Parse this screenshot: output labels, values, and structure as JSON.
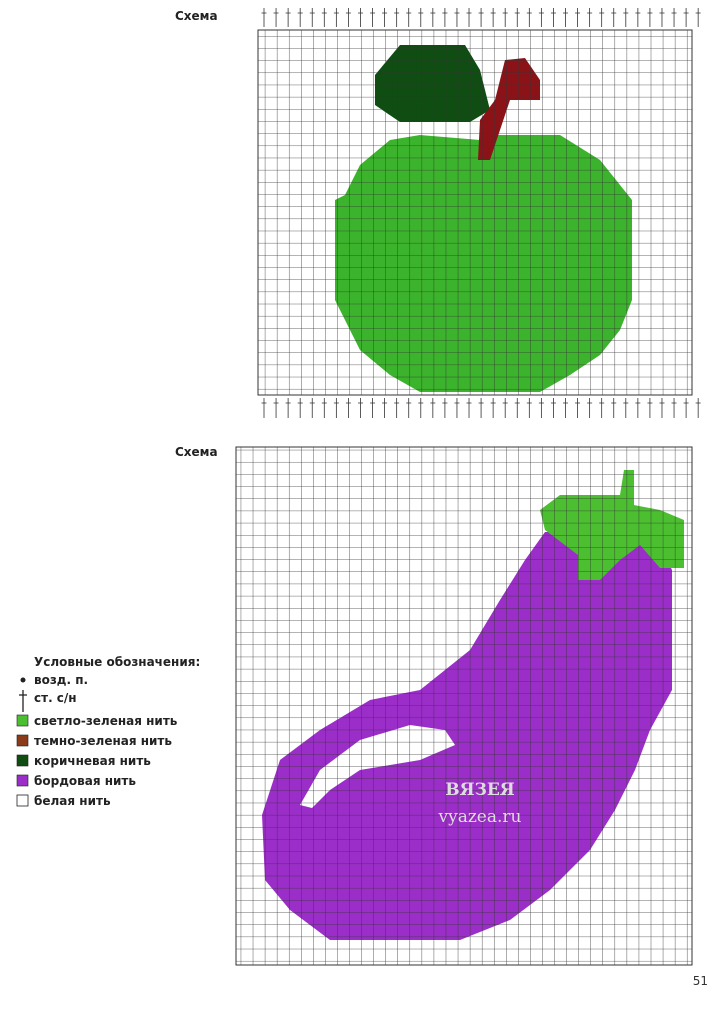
{
  "schemes": [
    {
      "label": "Схема"
    },
    {
      "label": "Схема"
    }
  ],
  "legend": {
    "title": "Условные обозначения:",
    "items": [
      "возд. п.",
      "ст. с/н",
      "светло-зеленая нить",
      "темно-зеленая нить",
      "коричневая нить",
      "бордовая нить",
      "белая нить"
    ]
  },
  "watermark": {
    "title": "ВЯЗЕЯ",
    "url": "vyazea.ru"
  },
  "page_number": "51"
}
